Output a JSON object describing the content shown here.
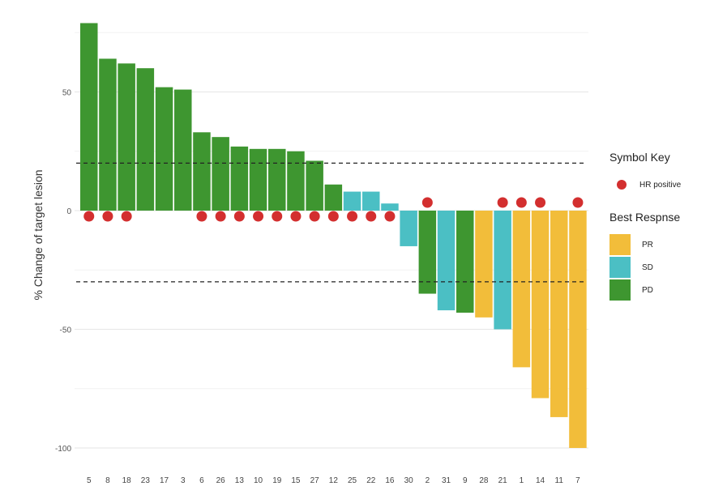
{
  "chart_data": {
    "type": "bar",
    "title": "",
    "xlabel": "",
    "ylabel": "% Change of target lesion",
    "ylim": [
      -100,
      80
    ],
    "yticks": [
      50,
      0,
      -50,
      -100
    ],
    "ytick_labels": [
      "50",
      "0",
      "-50",
      "-100"
    ],
    "reference_lines": [
      20,
      -30
    ],
    "grid": true,
    "legend_position": "right",
    "categories": [
      "5",
      "8",
      "18",
      "23",
      "17",
      "3",
      "6",
      "26",
      "13",
      "10",
      "19",
      "15",
      "27",
      "12",
      "25",
      "22",
      "16",
      "30",
      "2",
      "31",
      "9",
      "28",
      "21",
      "1",
      "14",
      "11",
      "7"
    ],
    "values": [
      79,
      64,
      62,
      60,
      52,
      51,
      33,
      31,
      27,
      26,
      26,
      25,
      21,
      11,
      8,
      8,
      3,
      -15,
      -35,
      -42,
      -43,
      -45,
      -50,
      -66,
      -79,
      -87,
      -100
    ],
    "response": [
      "PD",
      "PD",
      "PD",
      "PD",
      "PD",
      "PD",
      "PD",
      "PD",
      "PD",
      "PD",
      "PD",
      "PD",
      "PD",
      "PD",
      "SD",
      "SD",
      "SD",
      "SD",
      "PD",
      "SD",
      "PD",
      "PR",
      "SD",
      "PR",
      "PR",
      "PR",
      "PR"
    ],
    "hr_positive": [
      true,
      true,
      true,
      false,
      false,
      false,
      true,
      true,
      true,
      true,
      true,
      true,
      true,
      true,
      true,
      true,
      true,
      false,
      true,
      false,
      false,
      false,
      true,
      true,
      true,
      false,
      true
    ],
    "colors": {
      "PR": "#f2bd3a",
      "SD": "#4bbfc4",
      "PD": "#3e9630",
      "HR": "#d32f2f"
    }
  },
  "legend": {
    "symbol_title": "Symbol Key",
    "symbol_label": "HR positive",
    "response_title": "Best Respnse",
    "items": [
      {
        "label": "PR",
        "key": "PR"
      },
      {
        "label": "SD",
        "key": "SD"
      },
      {
        "label": "PD",
        "key": "PD"
      }
    ]
  }
}
